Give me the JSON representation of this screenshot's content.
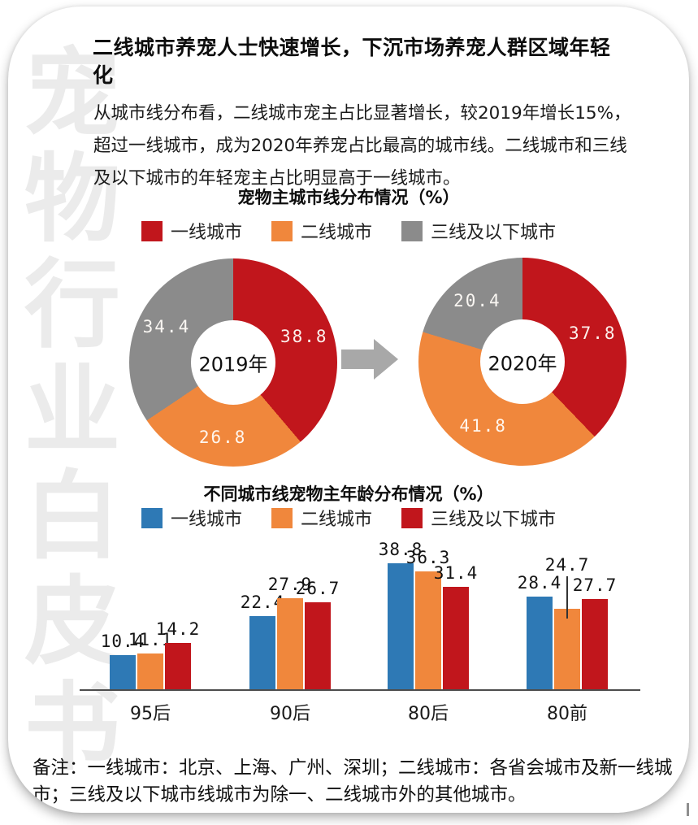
{
  "page": {
    "title": "二线城市养宠人士快速增长，下沉市场养宠人群区域年轻化",
    "body_text": "从城市线分布看，二线城市宠主占比显著增长，较2019年增长15%，超过一线城市，成为2020年养宠占比最高的城市线。二线城市和三线及以下城市的年轻宠主占比明显高于一线城市。",
    "footnote": "备注：一线城市：北京、上海、广州、深圳；二线城市：各省会城市及新一线城市；三线及以下城市线城市为除一、二线城市外的其他城市。",
    "watermark": "宠物行业白皮书"
  },
  "colors": {
    "red": "#c1161c",
    "orange": "#f0873c",
    "gray": "#8b8b8b",
    "blue": "#2e79b5",
    "arrow": "#a8a8a8",
    "watermark": "#ebebeb"
  },
  "chart_data": [
    {
      "type": "pie",
      "donut": true,
      "title": "宠物主城市线分布情况（%）",
      "legend": [
        {
          "label": "一线城市",
          "color": "#c1161c"
        },
        {
          "label": "二线城市",
          "color": "#f0873c"
        },
        {
          "label": "三线及以下城市",
          "color": "#8b8b8b"
        }
      ],
      "charts": [
        {
          "center_label": "2019年",
          "values": [
            38.8,
            26.8,
            34.4
          ]
        },
        {
          "center_label": "2020年",
          "values": [
            37.8,
            41.8,
            20.4
          ]
        }
      ]
    },
    {
      "type": "bar",
      "title": "不同城市线宠物主年龄分布情况（%）",
      "legend": [
        {
          "label": "一线城市",
          "color": "#2e79b5"
        },
        {
          "label": "二线城市",
          "color": "#f0873c"
        },
        {
          "label": "三线及以下城市",
          "color": "#c1161c"
        }
      ],
      "categories": [
        "95后",
        "90后",
        "80后",
        "80前"
      ],
      "series": [
        {
          "name": "一线城市",
          "color": "#2e79b5",
          "values": [
            10.4,
            22.4,
            38.8,
            28.4
          ]
        },
        {
          "name": "二线城市",
          "color": "#f0873c",
          "values": [
            11.1,
            27.9,
            36.3,
            24.7
          ]
        },
        {
          "name": "三线及以下城市",
          "color": "#c1161c",
          "values": [
            14.2,
            26.7,
            31.4,
            27.7
          ]
        }
      ],
      "callout": {
        "category_index": 3,
        "series_index": 1
      },
      "ylim": [
        0,
        45
      ],
      "grid": false,
      "legend_position": "top"
    }
  ]
}
